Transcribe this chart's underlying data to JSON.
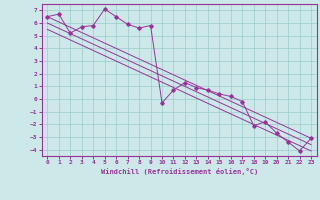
{
  "xlabel": "Windchill (Refroidissement éolien,°C)",
  "background_color": "#cce8e8",
  "grid_color": "#99cccc",
  "line_color": "#993399",
  "xlim": [
    -0.5,
    23.5
  ],
  "ylim": [
    -4.5,
    7.5
  ],
  "x_ticks": [
    0,
    1,
    2,
    3,
    4,
    5,
    6,
    7,
    8,
    9,
    10,
    11,
    12,
    13,
    14,
    15,
    16,
    17,
    18,
    19,
    20,
    21,
    22,
    23
  ],
  "y_ticks": [
    -4,
    -3,
    -2,
    -1,
    0,
    1,
    2,
    3,
    4,
    5,
    6,
    7
  ],
  "series": [
    [
      0,
      6.5
    ],
    [
      1,
      6.7
    ],
    [
      2,
      5.2
    ],
    [
      3,
      5.7
    ],
    [
      4,
      5.8
    ],
    [
      5,
      7.1
    ],
    [
      6,
      6.5
    ],
    [
      7,
      5.9
    ],
    [
      8,
      5.6
    ],
    [
      9,
      5.8
    ],
    [
      10,
      -0.3
    ],
    [
      11,
      0.7
    ],
    [
      12,
      1.3
    ],
    [
      13,
      0.9
    ],
    [
      14,
      0.7
    ],
    [
      15,
      0.4
    ],
    [
      16,
      0.2
    ],
    [
      17,
      -0.2
    ],
    [
      18,
      -2.1
    ],
    [
      19,
      -1.8
    ],
    [
      20,
      -2.7
    ],
    [
      21,
      -3.4
    ],
    [
      22,
      -4.1
    ],
    [
      23,
      -3.1
    ]
  ],
  "diag_line1": [
    [
      0,
      6.5
    ],
    [
      23,
      -3.1
    ]
  ],
  "diag_line2": [
    [
      0,
      6.0
    ],
    [
      23,
      -3.6
    ]
  ],
  "diag_line3": [
    [
      0,
      5.5
    ],
    [
      23,
      -4.1
    ]
  ]
}
